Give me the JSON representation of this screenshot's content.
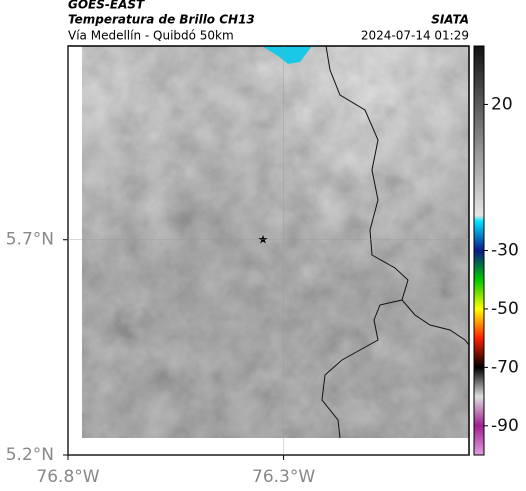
{
  "header": {
    "title": "GOES-EAST",
    "subtitle": "Temperatura de Brillo CH13",
    "source": "SIATA",
    "route": "Vía Medellín - Quibdó 50km",
    "timestamp": "2024-07-14 01:29"
  },
  "map": {
    "latlim": [
      5.2,
      6.15
    ],
    "lonlim": [
      -76.8,
      -75.87
    ],
    "latticks": [
      {
        "value": 5.2,
        "label": "5.2°N"
      },
      {
        "value": 5.7,
        "label": "5.7°N"
      }
    ],
    "lonticks": [
      {
        "value": -76.8,
        "label": "76.8°W"
      },
      {
        "value": -76.3,
        "label": "76.3°W"
      }
    ]
  },
  "colorbar": {
    "lim": [
      -100,
      40
    ],
    "ticks": [
      20,
      -30,
      -50,
      -70,
      -90
    ],
    "stops": [
      {
        "value": 40,
        "color": "#111111"
      },
      {
        "value": -18,
        "color": "#e6e6e6"
      },
      {
        "value": -20,
        "color": "#00e5ff"
      },
      {
        "value": -30,
        "color": "#0a1a8a"
      },
      {
        "value": -40,
        "color": "#00c800"
      },
      {
        "value": -50,
        "color": "#ffff00"
      },
      {
        "value": -60,
        "color": "#ff2000"
      },
      {
        "value": -70,
        "color": "#000000"
      },
      {
        "value": -80,
        "color": "#dddddd"
      },
      {
        "value": -90,
        "color": "#a02090"
      },
      {
        "value": -100,
        "color": "#e0a0e0"
      }
    ]
  }
}
